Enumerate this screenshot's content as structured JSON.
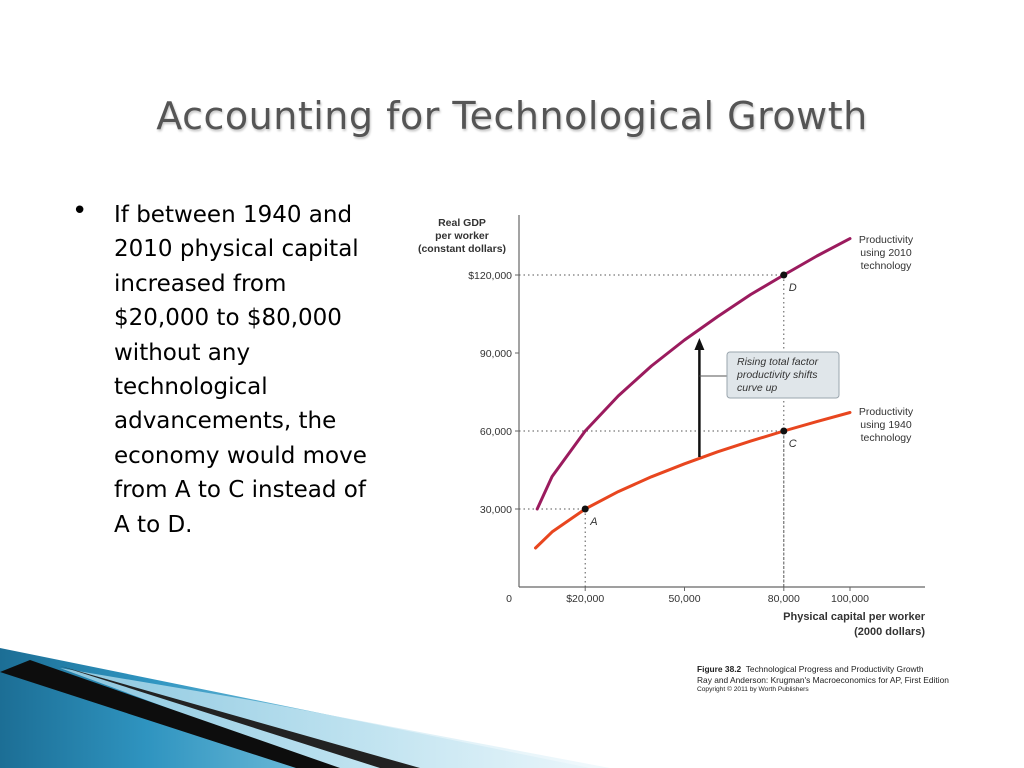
{
  "slide": {
    "title": "Accounting for Technological Growth",
    "bullet": "If between 1940 and 2010 physical capital increased from $20,000 to $80,000 without any technological advancements, the economy would move from A to C instead of A to D."
  },
  "caption": {
    "figure": "Figure 38.2",
    "figure_title": "Technological Progress and Productivity Growth",
    "source": "Ray and Anderson: Krugman's Macroeconomics for AP, First Edition",
    "copyright": "Copyright © 2011 by Worth Publishers"
  },
  "chart_data": {
    "type": "line",
    "ylabel": [
      "Real GDP",
      "per worker",
      "(constant dollars)"
    ],
    "xlabel": [
      "Physical capital per worker",
      "(2000 dollars)"
    ],
    "xlim": [
      0,
      112000
    ],
    "ylim": [
      0,
      130000
    ],
    "x_ticks": [
      {
        "value": 0,
        "label": "0"
      },
      {
        "value": 20000,
        "label": "$20,000"
      },
      {
        "value": 50000,
        "label": "50,000"
      },
      {
        "value": 80000,
        "label": "80,000"
      },
      {
        "value": 100000,
        "label": "100,000"
      }
    ],
    "y_ticks": [
      {
        "value": 30000,
        "label": "30,000"
      },
      {
        "value": 60000,
        "label": "60,000"
      },
      {
        "value": 90000,
        "label": "90,000"
      },
      {
        "value": 120000,
        "label": "$120,000"
      }
    ],
    "series": [
      {
        "name": "Productivity using 2010 technology",
        "label_lines": [
          "Productivity",
          "using 2010",
          "technology"
        ],
        "color": "#9b1b5e",
        "x": [
          5500,
          10000,
          20000,
          30000,
          40000,
          50000,
          60000,
          70000,
          80000,
          90000,
          100000
        ],
        "y": [
          30000,
          42500,
          60000,
          73500,
          85000,
          95000,
          104000,
          112500,
          120000,
          127300,
          134000
        ]
      },
      {
        "name": "Productivity using 1940 technology",
        "label_lines": [
          "Productivity",
          "using 1940",
          "technology"
        ],
        "color": "#e8461f",
        "x": [
          5000,
          10000,
          20000,
          30000,
          40000,
          50000,
          60000,
          70000,
          80000,
          90000,
          100000
        ],
        "y": [
          15000,
          21200,
          30000,
          36700,
          42400,
          47400,
          52000,
          56100,
          60000,
          63600,
          67100
        ]
      }
    ],
    "points": [
      {
        "label": "A",
        "x": 20000,
        "y": 30000
      },
      {
        "label": "C",
        "x": 80000,
        "y": 60000
      },
      {
        "label": "D",
        "x": 80000,
        "y": 120000
      }
    ],
    "annotation": {
      "lines": [
        "Rising total factor",
        "productivity shifts",
        "curve up"
      ],
      "arrow_x": 54500,
      "arrow_from_y": 50000,
      "arrow_to_y": 95000
    },
    "colors": {
      "box_fill": "#e0e6ea",
      "box_border": "#9aa5ad",
      "grid": "#555555",
      "axis": "#666666"
    }
  }
}
